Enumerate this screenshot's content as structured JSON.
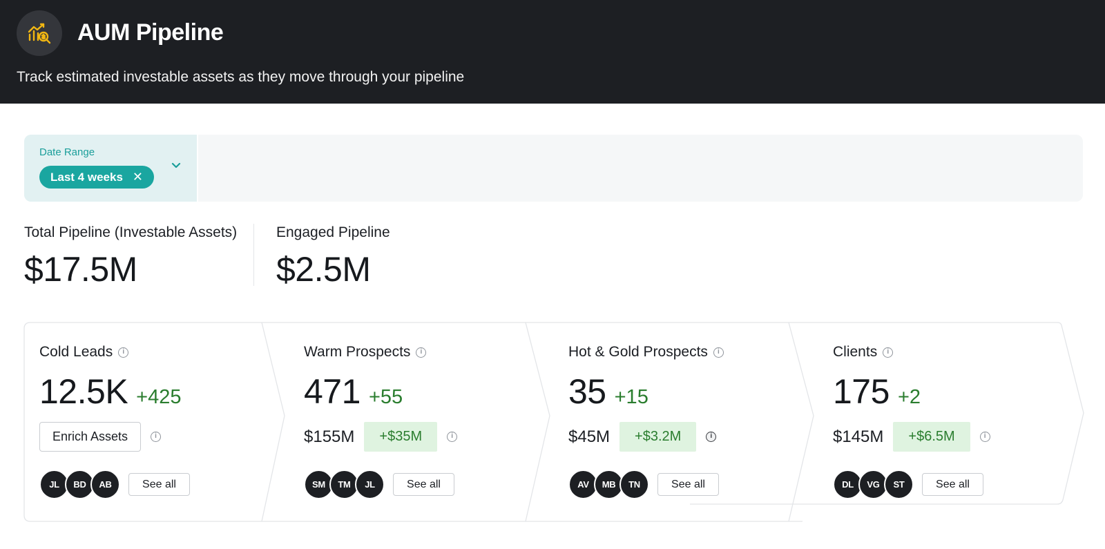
{
  "header": {
    "title": "AUM Pipeline",
    "subtitle": "Track estimated investable assets as they move through your pipeline",
    "logo_icon": "chart-search-icon",
    "accent_color": "#f2b712"
  },
  "filters": {
    "date_range_label": "Date Range",
    "date_range_value": "Last 4 weeks",
    "chip_close": "✕"
  },
  "stats": {
    "total_label": "Total Pipeline (Investable Assets)",
    "total_value": "$17.5M",
    "engaged_label": "Engaged Pipeline",
    "engaged_value": "$2.5M"
  },
  "stages": [
    {
      "title": "Cold Leads",
      "count": "12.5K",
      "count_delta": "+425",
      "action_label": "Enrich Assets",
      "avatars": [
        "JL",
        "BD",
        "AB"
      ],
      "see_all": "See all"
    },
    {
      "title": "Warm Prospects",
      "count": "471",
      "count_delta": "+55",
      "assets": "$155M",
      "assets_delta": "+$35M",
      "avatars": [
        "SM",
        "TM",
        "JL"
      ],
      "see_all": "See all"
    },
    {
      "title": "Hot & Gold Prospects",
      "count": "35",
      "count_delta": "+15",
      "assets": "$45M",
      "assets_delta": "+$3.2M",
      "avatars": [
        "AV",
        "MB",
        "TN"
      ],
      "see_all": "See all"
    },
    {
      "title": "Clients",
      "count": "175",
      "count_delta": "+2",
      "assets": "$145M",
      "assets_delta": "+$6.5M",
      "avatars": [
        "DL",
        "VG",
        "ST"
      ],
      "see_all": "See all"
    }
  ],
  "colors": {
    "header_bg": "#1d1f23",
    "teal": "#1aa6a0",
    "positive": "#2a7d2e",
    "positive_bg": "#dff3e0"
  }
}
